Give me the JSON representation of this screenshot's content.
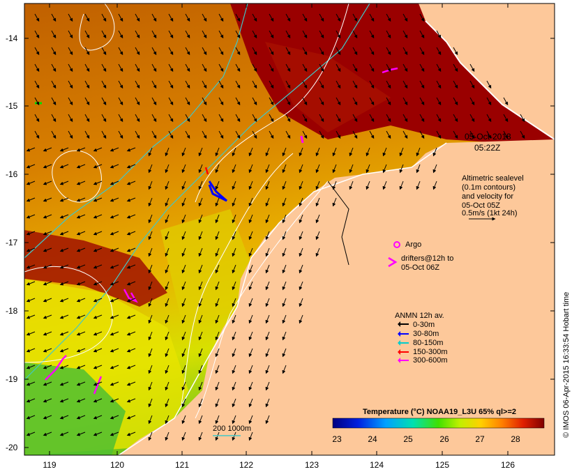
{
  "timestamp": {
    "date": "05-Oct-2013",
    "time": "05:22Z"
  },
  "sealevel_note": [
    "Altimetric sealevel",
    "(0.1m contours)",
    "and velocity for",
    "05-Oct 05Z",
    "0.5m/s (1kt 24h)"
  ],
  "argo_label": "Argo",
  "drifters_label": [
    "drifters@12h to",
    "05-Oct 06Z"
  ],
  "anmn": {
    "title": "ANMN 12h av.",
    "items": [
      {
        "label": "0-30m",
        "color": "#000000"
      },
      {
        "label": "30-80m",
        "color": "#0000ff"
      },
      {
        "label": "80-150m",
        "color": "#00cccc"
      },
      {
        "label": "150-300m",
        "color": "#ff0000"
      },
      {
        "label": "300-600m",
        "color": "#ff00ff"
      }
    ]
  },
  "colorbar": {
    "title": "Temperature (°C) NOAA19_L3U 65% ql>=2",
    "ticks": [
      "23",
      "24",
      "25",
      "26",
      "27",
      "28"
    ],
    "colors": [
      "#000080",
      "#0000d0",
      "#0060ff",
      "#00b0ff",
      "#00e0c0",
      "#20e060",
      "#60e000",
      "#c0f000",
      "#f0f000",
      "#ffc000",
      "#ff8000",
      "#ff4000",
      "#d00000",
      "#a00000",
      "#800000"
    ]
  },
  "scale_label": "200  1000m",
  "credit": "© IMOS 06-Apr-2015 16:33:54 Hobart time",
  "axes": {
    "y_ticks": [
      "-14",
      "-15",
      "-16",
      "-17",
      "-18",
      "-19",
      "-20"
    ],
    "x_ticks": [
      "119",
      "120",
      "121",
      "122",
      "123",
      "124",
      "125",
      "126"
    ]
  },
  "colors": {
    "land": "#fdc89a",
    "ocean_warm": "#9a0000",
    "ocean_mid": "#e07800",
    "ocean_cool": "#f0f000",
    "ocean_cold": "#30c030",
    "isobath": "#40c8c8"
  }
}
